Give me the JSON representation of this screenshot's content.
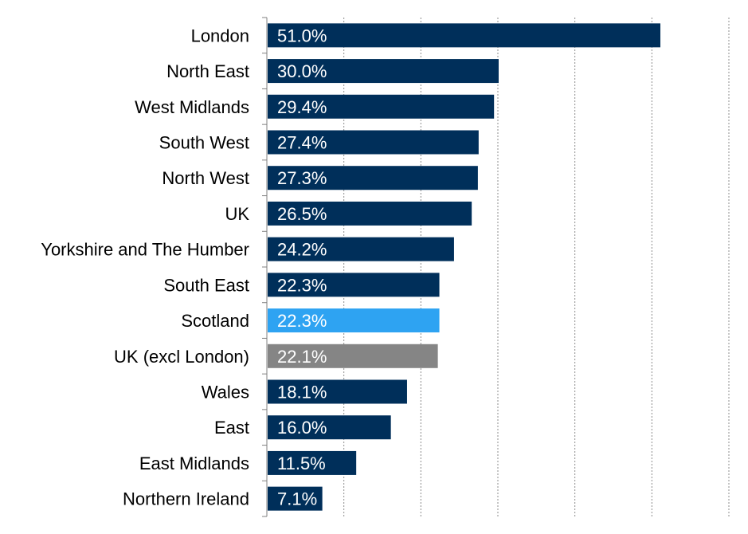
{
  "chart_data": {
    "type": "bar",
    "orientation": "horizontal",
    "categories": [
      "London",
      "North East",
      "West Midlands",
      "South West",
      "North West",
      "UK",
      "Yorkshire and The Humber",
      "South East",
      "Scotland",
      "UK (excl London)",
      "Wales",
      "East",
      "East Midlands",
      "Northern Ireland"
    ],
    "values": [
      51.0,
      30.0,
      29.4,
      27.4,
      27.3,
      26.5,
      24.2,
      22.3,
      22.3,
      22.1,
      18.1,
      16.0,
      11.5,
      7.1
    ],
    "data_labels": [
      "51.0%",
      "30.0%",
      "29.4%",
      "27.4%",
      "27.3%",
      "26.5%",
      "24.2%",
      "22.3%",
      "22.3%",
      "22.1%",
      "18.1%",
      "16.0%",
      "11.5%",
      "7.1%"
    ],
    "bar_colors": [
      "#002f5a",
      "#002f5a",
      "#002f5a",
      "#002f5a",
      "#002f5a",
      "#002f5a",
      "#002f5a",
      "#002f5a",
      "#2ea3f2",
      "#858585",
      "#002f5a",
      "#002f5a",
      "#002f5a",
      "#002f5a"
    ],
    "xlim": [
      0,
      60
    ],
    "gridlines": "vertical-dashed",
    "legend": "none",
    "title": "",
    "xlabel": "",
    "ylabel": ""
  }
}
